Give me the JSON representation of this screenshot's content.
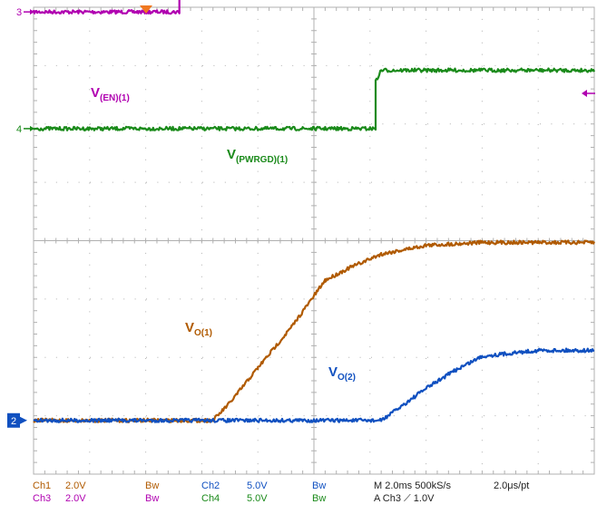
{
  "chart_data": {
    "type": "line",
    "title": "",
    "xlabel": "",
    "ylabel": "",
    "grid": true,
    "time_div_ms": 2.0,
    "x_divisions": 10,
    "y_divisions": 8,
    "series": [
      {
        "name": "Ch3",
        "label_main": "V",
        "label_sub": "(EN)(1)",
        "color": "#b000b0",
        "marker": "3",
        "x": [
          0,
          2.6,
          2.6,
          10
        ],
        "y": [
          2.0,
          2.0,
          3.0,
          3.0
        ]
      },
      {
        "name": "Ch4",
        "label_main": "V",
        "label_sub": "(PWRGD)(1)",
        "color": "#1a8a1a",
        "marker": "4",
        "x": [
          0,
          6.1,
          6.1,
          6.2,
          10
        ],
        "y": [
          1.0,
          1.0,
          1.8,
          2.0,
          2.0
        ]
      },
      {
        "name": "Ch1",
        "label_main": "V",
        "label_sub": "O(1)",
        "color": "#b05a00",
        "marker": "",
        "x": [
          0,
          3.2,
          3.5,
          4.0,
          4.6,
          5.2,
          5.6,
          6.2,
          7.0,
          8.0,
          10
        ],
        "y": [
          0,
          0,
          0.3,
          0.9,
          1.6,
          2.4,
          2.6,
          2.85,
          3.0,
          3.05,
          3.05
        ]
      },
      {
        "name": "Ch2",
        "label_main": "V",
        "label_sub": "O(2)",
        "color": "#1050c0",
        "marker": "2",
        "x": [
          0,
          6.2,
          6.5,
          7.0,
          7.5,
          8.0,
          8.5,
          9.0,
          10
        ],
        "y": [
          0,
          0,
          0.2,
          0.55,
          0.85,
          1.1,
          1.15,
          1.2,
          1.2
        ]
      }
    ]
  },
  "status_bar": {
    "row1": {
      "ch1": "Ch1",
      "ch1_scale": "2.0V",
      "ch1_bw": "Bw",
      "ch2": "Ch2",
      "ch2_scale": "5.0V",
      "ch2_bw": "Bw",
      "timebase": "M 2.0ms 500kS/s",
      "resolution": "2.0μs/pt"
    },
    "row2": {
      "ch3": "Ch3",
      "ch3_scale": "2.0V",
      "ch3_bw": "Bw",
      "ch4": "Ch4",
      "ch4_scale": "5.0V",
      "ch4_bw": "Bw",
      "trigger": "A  Ch3  ⟋  1.0V"
    }
  },
  "colors": {
    "ch1": "#b05a00",
    "ch2": "#1050c0",
    "ch3": "#b000b0",
    "ch4": "#1a8a1a",
    "grid": "#b0b0b0",
    "trigger": "#f07820"
  }
}
